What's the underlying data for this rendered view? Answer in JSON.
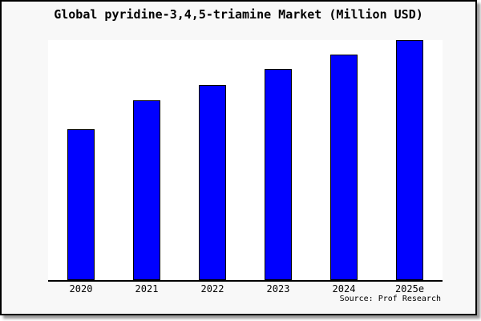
{
  "title": "Global pyridine-3,4,5-triamine Market (Million USD)",
  "source_credit": "Source: Prof Research",
  "colors": {
    "bar_fill": "#0000ff",
    "bar_edge": "#000000",
    "frame_background": "#f8f8f8",
    "plot_background": "#ffffff",
    "frame_border": "#000000",
    "text": "#000000"
  },
  "chart_data": {
    "type": "bar",
    "title": "Global pyridine-3,4,5-triamine Market (Million USD)",
    "categories": [
      "2020",
      "2021",
      "2022",
      "2023",
      "2024",
      "2025e"
    ],
    "values": [
      62.9,
      75.0,
      81.4,
      88.0,
      94.0,
      100.0
    ],
    "value_note": "No y-axis ticks or data labels are shown in the image; values are relative units estimated from bar pixel heights, normalized so 2025e = 100",
    "xlabel": "",
    "ylabel": "",
    "ylim": [
      0,
      100.3
    ],
    "bar_width_frac": 0.415,
    "grid": false,
    "legend": false,
    "source": "Source: Prof Research"
  }
}
